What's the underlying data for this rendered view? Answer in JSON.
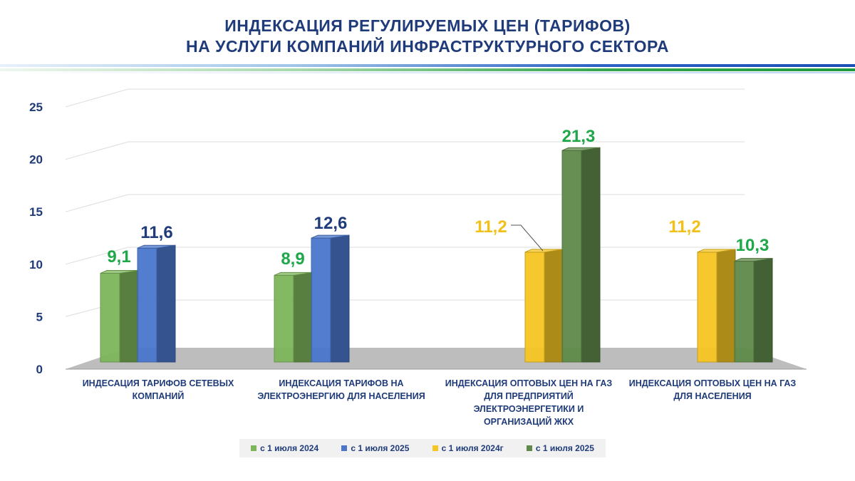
{
  "title": {
    "line1": "ИНДЕКСАЦИЯ РЕГУЛИРУЕМЫХ ЦЕН (ТАРИФОВ)",
    "line2": "НА УСЛУГИ КОМПАНИЙ ИНФРАСТРУКТУРНОГО СЕКТОРА"
  },
  "colors": {
    "title": "#1f3b7a",
    "green_light": "#7db65a",
    "blue": "#4a77cc",
    "yellow": "#f6c623",
    "green_dark": "#5f8a4a",
    "label_green": "#1ea84a",
    "label_navy": "#1f3b7a",
    "label_yellow": "#f2c019"
  },
  "chart_data": {
    "type": "bar",
    "title": "ИНДЕКСАЦИЯ РЕГУЛИРУЕМЫХ ЦЕН (ТАРИФОВ) НА УСЛУГИ КОМПАНИЙ ИНФРАСТРУКТУРНОГО СЕКТОРА",
    "categories": [
      "ИНДЕСАЦИЯ ТАРИФОВ СЕТЕВЫХ КОМПАНИЙ",
      "ИНДЕКСАЦИЯ ТАРИФОВ НА ЭЛЕКТРОЭНЕРГИЮ ДЛЯ НАСЕЛЕНИЯ",
      "ИНДЕКСАЦИЯ ОПТОВЫХ ЦЕН НА ГАЗ ДЛЯ ПРЕДПРИЯТИЙ ЭЛЕКТРОЭНЕРГЕТИКИ И ОРГАНИЗАЦИЙ ЖКХ",
      "ИНДЕКСАЦИЯ ОПТОВЫХ ЦЕН НА ГАЗ ДЛЯ НАСЕЛЕНИЯ"
    ],
    "yticks": [
      "0",
      "5",
      "10",
      "15",
      "20",
      "25"
    ],
    "ylim": [
      0,
      25
    ],
    "bars": [
      {
        "category": 0,
        "series": "с 1 июля 2024",
        "value": 9.1,
        "label": "9,1",
        "color": "#7db65a",
        "label_color": "#1ea84a"
      },
      {
        "category": 0,
        "series": "с 1 июля 2025",
        "value": 11.6,
        "label": "11,6",
        "color": "#4a77cc",
        "label_color": "#1f3b7a"
      },
      {
        "category": 1,
        "series": "с 1 июля 2024",
        "value": 8.9,
        "label": "8,9",
        "color": "#7db65a",
        "label_color": "#1ea84a"
      },
      {
        "category": 1,
        "series": "с 1 июля 2025",
        "value": 12.6,
        "label": "12,6",
        "color": "#4a77cc",
        "label_color": "#1f3b7a"
      },
      {
        "category": 2,
        "series": "с 1 июля 2024",
        "value": 11.2,
        "label": "11,2",
        "color": "#f6c623",
        "label_color": "#f2c019"
      },
      {
        "category": 2,
        "series": "с 1 июля 2025",
        "value": 21.3,
        "label": "21,3",
        "color": "#5f8a4a",
        "label_color": "#1ea84a"
      },
      {
        "category": 3,
        "series": "с 1 июля 2024",
        "value": 11.2,
        "label": "11,2",
        "color": "#f6c623",
        "label_color": "#f2c019"
      },
      {
        "category": 3,
        "series": "с 1 июля 2025",
        "value": 10.3,
        "label": "10,3",
        "color": "#5f8a4a",
        "label_color": "#1ea84a"
      }
    ],
    "legend": [
      {
        "label": "с 1 июля 2024",
        "color": "#7db65a"
      },
      {
        "label": "с 1 июля 2025",
        "color": "#4a77cc"
      },
      {
        "label": "с 1 июля 2024г",
        "color": "#f6c623"
      },
      {
        "label": "с 1 июля 2025",
        "color": "#5f8a4a"
      }
    ]
  }
}
